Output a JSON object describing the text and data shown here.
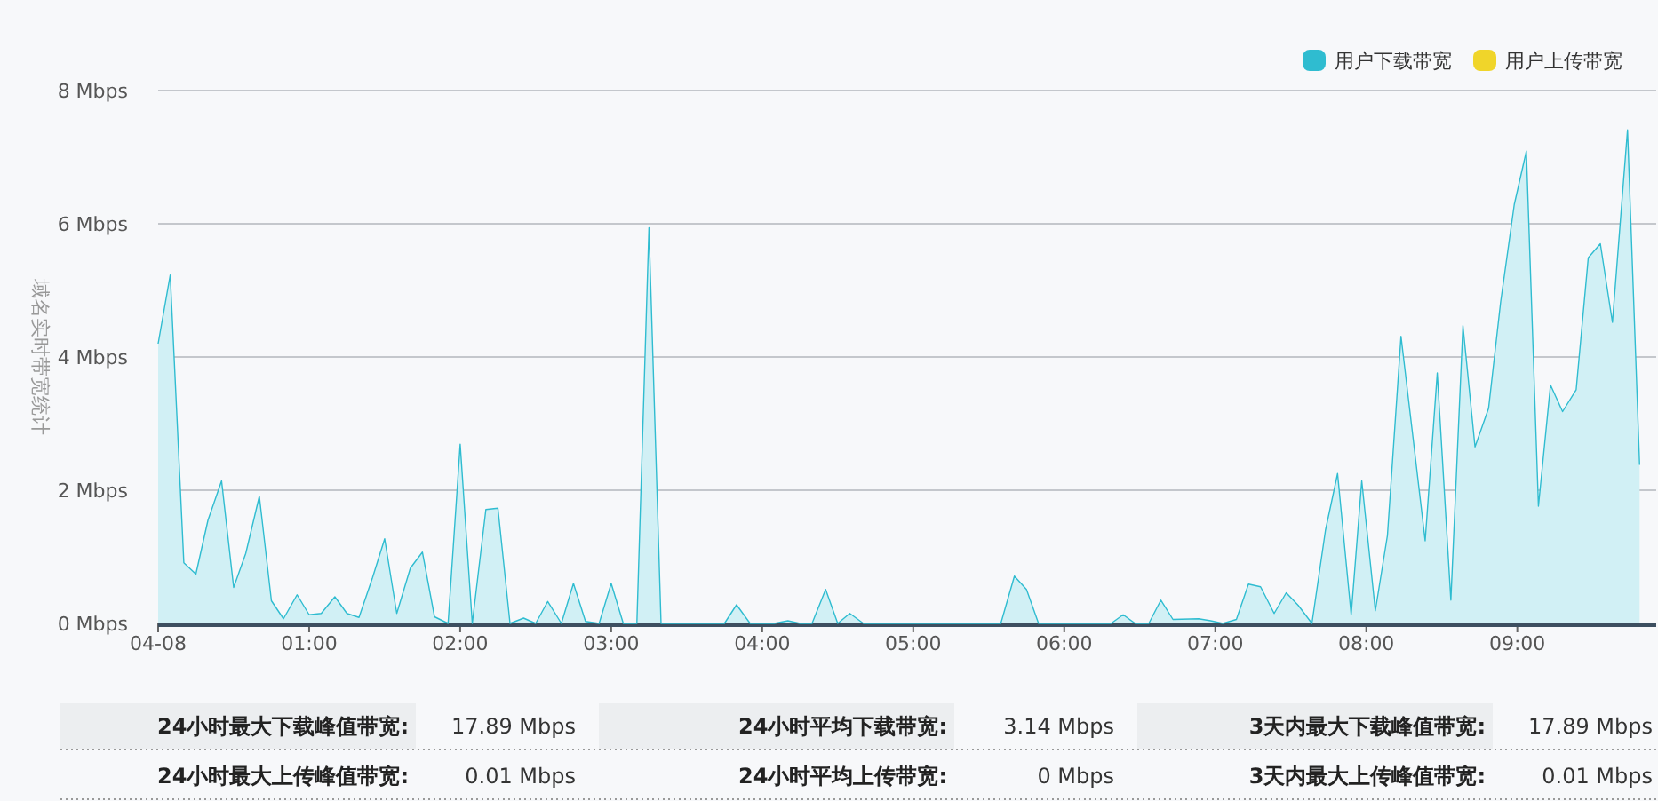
{
  "chart_data": {
    "type": "area",
    "ylabel": "域名实时带宽统计",
    "legend": "top right",
    "grid": "y",
    "xlim": [
      0,
      9.92
    ],
    "ylim": [
      0,
      8
    ],
    "xticks": [
      {
        "value": 0,
        "label": "04-08"
      },
      {
        "value": 1,
        "label": "01:00"
      },
      {
        "value": 2,
        "label": "02:00"
      },
      {
        "value": 3,
        "label": "03:00"
      },
      {
        "value": 4,
        "label": "04:00"
      },
      {
        "value": 5,
        "label": "05:00"
      },
      {
        "value": 6,
        "label": "06:00"
      },
      {
        "value": 7,
        "label": "07:00"
      },
      {
        "value": 8,
        "label": "08:00"
      },
      {
        "value": 9,
        "label": "09:00"
      }
    ],
    "yticks": [
      {
        "value": 0,
        "label": "0 Mbps"
      },
      {
        "value": 2,
        "label": "2 Mbps"
      },
      {
        "value": 4,
        "label": "4 Mbps"
      },
      {
        "value": 6,
        "label": "6 Mbps"
      },
      {
        "value": 8,
        "label": "8 Mbps"
      }
    ],
    "series": [
      {
        "name": "用户下载带宽",
        "color": "#2fbcd0",
        "x": [
          0,
          0.08,
          0.17,
          0.25,
          0.33,
          0.42,
          0.5,
          0.58,
          0.67,
          0.75,
          0.83,
          0.92,
          1.0,
          1.08,
          1.17,
          1.25,
          1.33,
          1.42,
          1.5,
          1.58,
          1.67,
          1.75,
          1.83,
          1.92,
          2.0,
          2.08,
          2.17,
          2.25,
          2.33,
          2.42,
          2.5,
          2.58,
          2.67,
          2.75,
          2.83,
          2.92,
          3.0,
          3.08,
          3.17,
          3.25,
          3.33,
          3.75,
          3.83,
          3.92,
          4.08,
          4.17,
          4.25,
          4.33,
          4.42,
          4.5,
          4.58,
          4.67,
          5.58,
          5.67,
          5.75,
          5.83,
          6.31,
          6.39,
          6.47,
          6.56,
          6.64,
          6.72,
          6.89,
          6.97,
          7.05,
          7.14,
          7.22,
          7.3,
          7.39,
          7.47,
          7.55,
          7.64,
          7.73,
          7.81,
          7.9,
          7.97,
          8.06,
          8.14,
          8.23,
          8.31,
          8.39,
          8.47,
          8.56,
          8.64,
          8.72,
          8.81,
          8.89,
          8.98,
          9.06,
          9.14,
          9.22,
          9.3,
          9.39,
          9.47,
          9.55,
          9.63,
          9.73,
          9.81
        ],
        "values": [
          4.2,
          5.23,
          0.91,
          0.74,
          1.55,
          2.14,
          0.54,
          1.05,
          1.91,
          0.34,
          0.07,
          0.43,
          0.13,
          0.15,
          0.4,
          0.15,
          0.09,
          0.69,
          1.27,
          0.15,
          0.83,
          1.07,
          0.1,
          0,
          2.69,
          0,
          1.71,
          1.73,
          0,
          0.08,
          0,
          0.33,
          0,
          0.6,
          0.03,
          0,
          0.6,
          0,
          0,
          5.94,
          0,
          0,
          0.28,
          0,
          0,
          0.04,
          0,
          0,
          0.51,
          0,
          0.15,
          0,
          0,
          0.71,
          0.51,
          0,
          0,
          0.13,
          0,
          0,
          0.35,
          0.06,
          0.07,
          0.04,
          0,
          0.06,
          0.59,
          0.55,
          0.15,
          0.46,
          0.27,
          0,
          1.4,
          2.25,
          0.13,
          2.14,
          0.19,
          1.32,
          4.31,
          2.78,
          1.24,
          3.76,
          0.35,
          4.47,
          2.65,
          3.23,
          4.83,
          6.29,
          7.09,
          1.76,
          3.58,
          3.18,
          3.51,
          5.49,
          5.7,
          4.52,
          7.41,
          2.38
        ]
      },
      {
        "name": "用户上传带宽",
        "color": "#f0d52a"
      }
    ],
    "annotations": [
      "24小时最大下载峰值带宽:",
      "17.89 Mbps",
      "24小时平均下载带宽:",
      "3.14 Mbps",
      "3天内最大下载峰值带宽:",
      "17.89 Mbps",
      "24小时最大上传峰值带宽:",
      "0.01 Mbps",
      "24小时平均上传带宽:",
      "0 Mbps",
      "3天内最大上传峰值带宽:",
      "0.01 Mbps"
    ]
  }
}
